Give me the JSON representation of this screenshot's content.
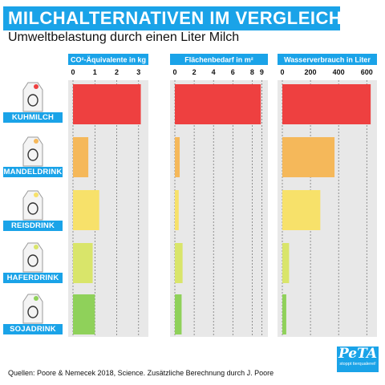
{
  "title": "MILCHALTERNATIVEN IM VERGLEICH",
  "subtitle": "Umweltbelastung durch einen Liter Milch",
  "footer": "Quellen: Poore & Nemecek 2018, Science. Zusätzliche Berechnung durch J. Poore",
  "brand": {
    "name": "PeTA",
    "tagline": "stoppt tierqualerei!"
  },
  "colors": {
    "accent": "#1aa3e8",
    "panel_bg": "#e8e8e8",
    "gridline": "#555555"
  },
  "products": [
    {
      "label": "KUHMILCH",
      "color": "#ee4040",
      "icon": "cow-icon"
    },
    {
      "label": "MANDELDRINK",
      "color": "#f5b85a",
      "icon": "almond-icon"
    },
    {
      "label": "REISDRINK",
      "color": "#f7e16a",
      "icon": "rice-icon"
    },
    {
      "label": "HAFERDRINK",
      "color": "#d9e56a",
      "icon": "oat-icon"
    },
    {
      "label": "SOJADRINK",
      "color": "#8fd15a",
      "icon": "soy-icon"
    }
  ],
  "chart_data": [
    {
      "type": "bar",
      "title": "CO²-Äquivalente in kg",
      "categories": [
        "KUHMILCH",
        "MANDELDRINK",
        "REISDRINK",
        "HAFERDRINK",
        "SOJADRINK"
      ],
      "values": [
        3.1,
        0.7,
        1.2,
        0.9,
        1.0
      ],
      "xlim": [
        0,
        3.3
      ],
      "ticks": [
        0,
        1,
        2,
        3
      ],
      "tick_labels": [
        "0",
        "1",
        "2",
        "3"
      ],
      "grid": true
    },
    {
      "type": "bar",
      "title": "Flächenbedarf in m²",
      "categories": [
        "KUHMILCH",
        "MANDELDRINK",
        "REISDRINK",
        "HAFERDRINK",
        "SOJADRINK"
      ],
      "values": [
        8.9,
        0.5,
        0.4,
        0.8,
        0.7
      ],
      "xlim": [
        0,
        9.3
      ],
      "ticks": [
        0,
        2,
        4,
        6,
        8,
        9
      ],
      "tick_labels": [
        "0",
        "2",
        "4",
        "6",
        "8",
        "9"
      ],
      "grid": true
    },
    {
      "type": "bar",
      "title": "Wasserverbrauch in Liter",
      "categories": [
        "KUHMILCH",
        "MANDELDRINK",
        "REISDRINK",
        "HAFERDRINK",
        "SOJADRINK"
      ],
      "values": [
        628,
        371,
        270,
        48,
        28
      ],
      "xlim": [
        0,
        650
      ],
      "ticks": [
        0,
        200,
        400,
        600
      ],
      "tick_labels": [
        "0",
        "200",
        "400",
        "600"
      ],
      "grid": true
    }
  ]
}
